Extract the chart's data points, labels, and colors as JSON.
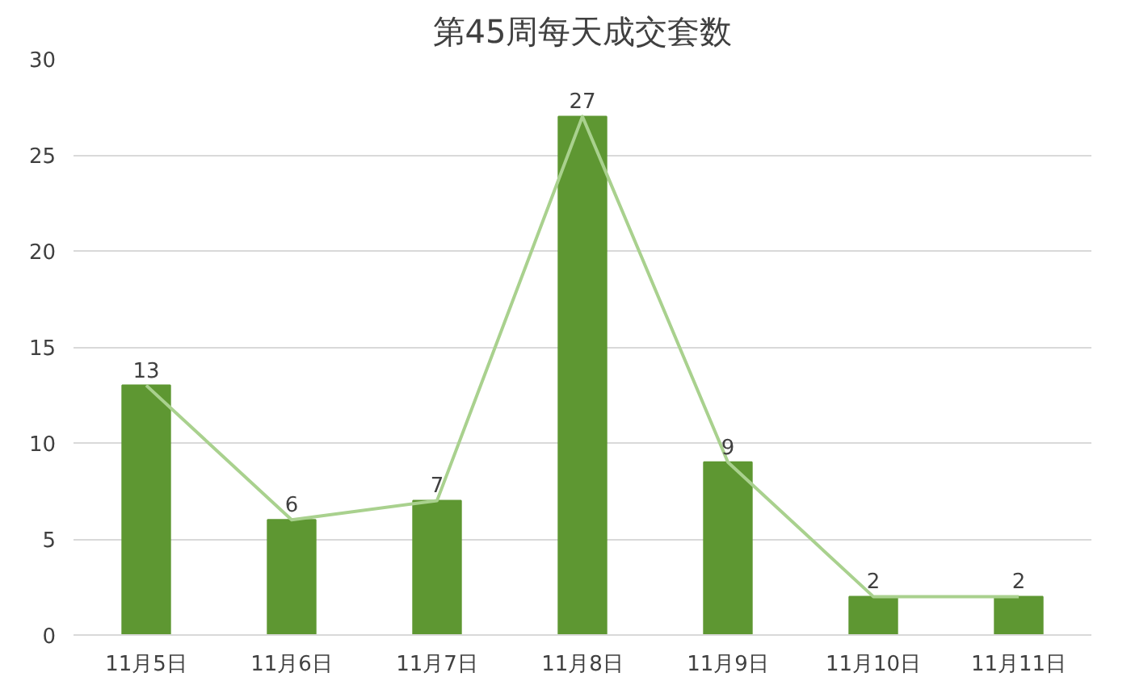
{
  "chart_data": {
    "type": "bar",
    "title": "第45周每天成交套数",
    "categories": [
      "11月5日",
      "11月6日",
      "11月7日",
      "11月8日",
      "11月9日",
      "11月10日",
      "11月11日"
    ],
    "series": [
      {
        "color": "#5e9732",
        "values": [
          13,
          6,
          7,
          27,
          9,
          2,
          2
        ],
        "data_labels": true
      },
      {
        "type": "line",
        "color": "#a9d18e",
        "values": [
          13,
          6,
          7,
          27,
          9,
          2,
          2
        ]
      }
    ],
    "ylim": [
      0,
      30
    ],
    "yticks": [
      0,
      5,
      10,
      15,
      20,
      25,
      30
    ],
    "grid": "y"
  }
}
